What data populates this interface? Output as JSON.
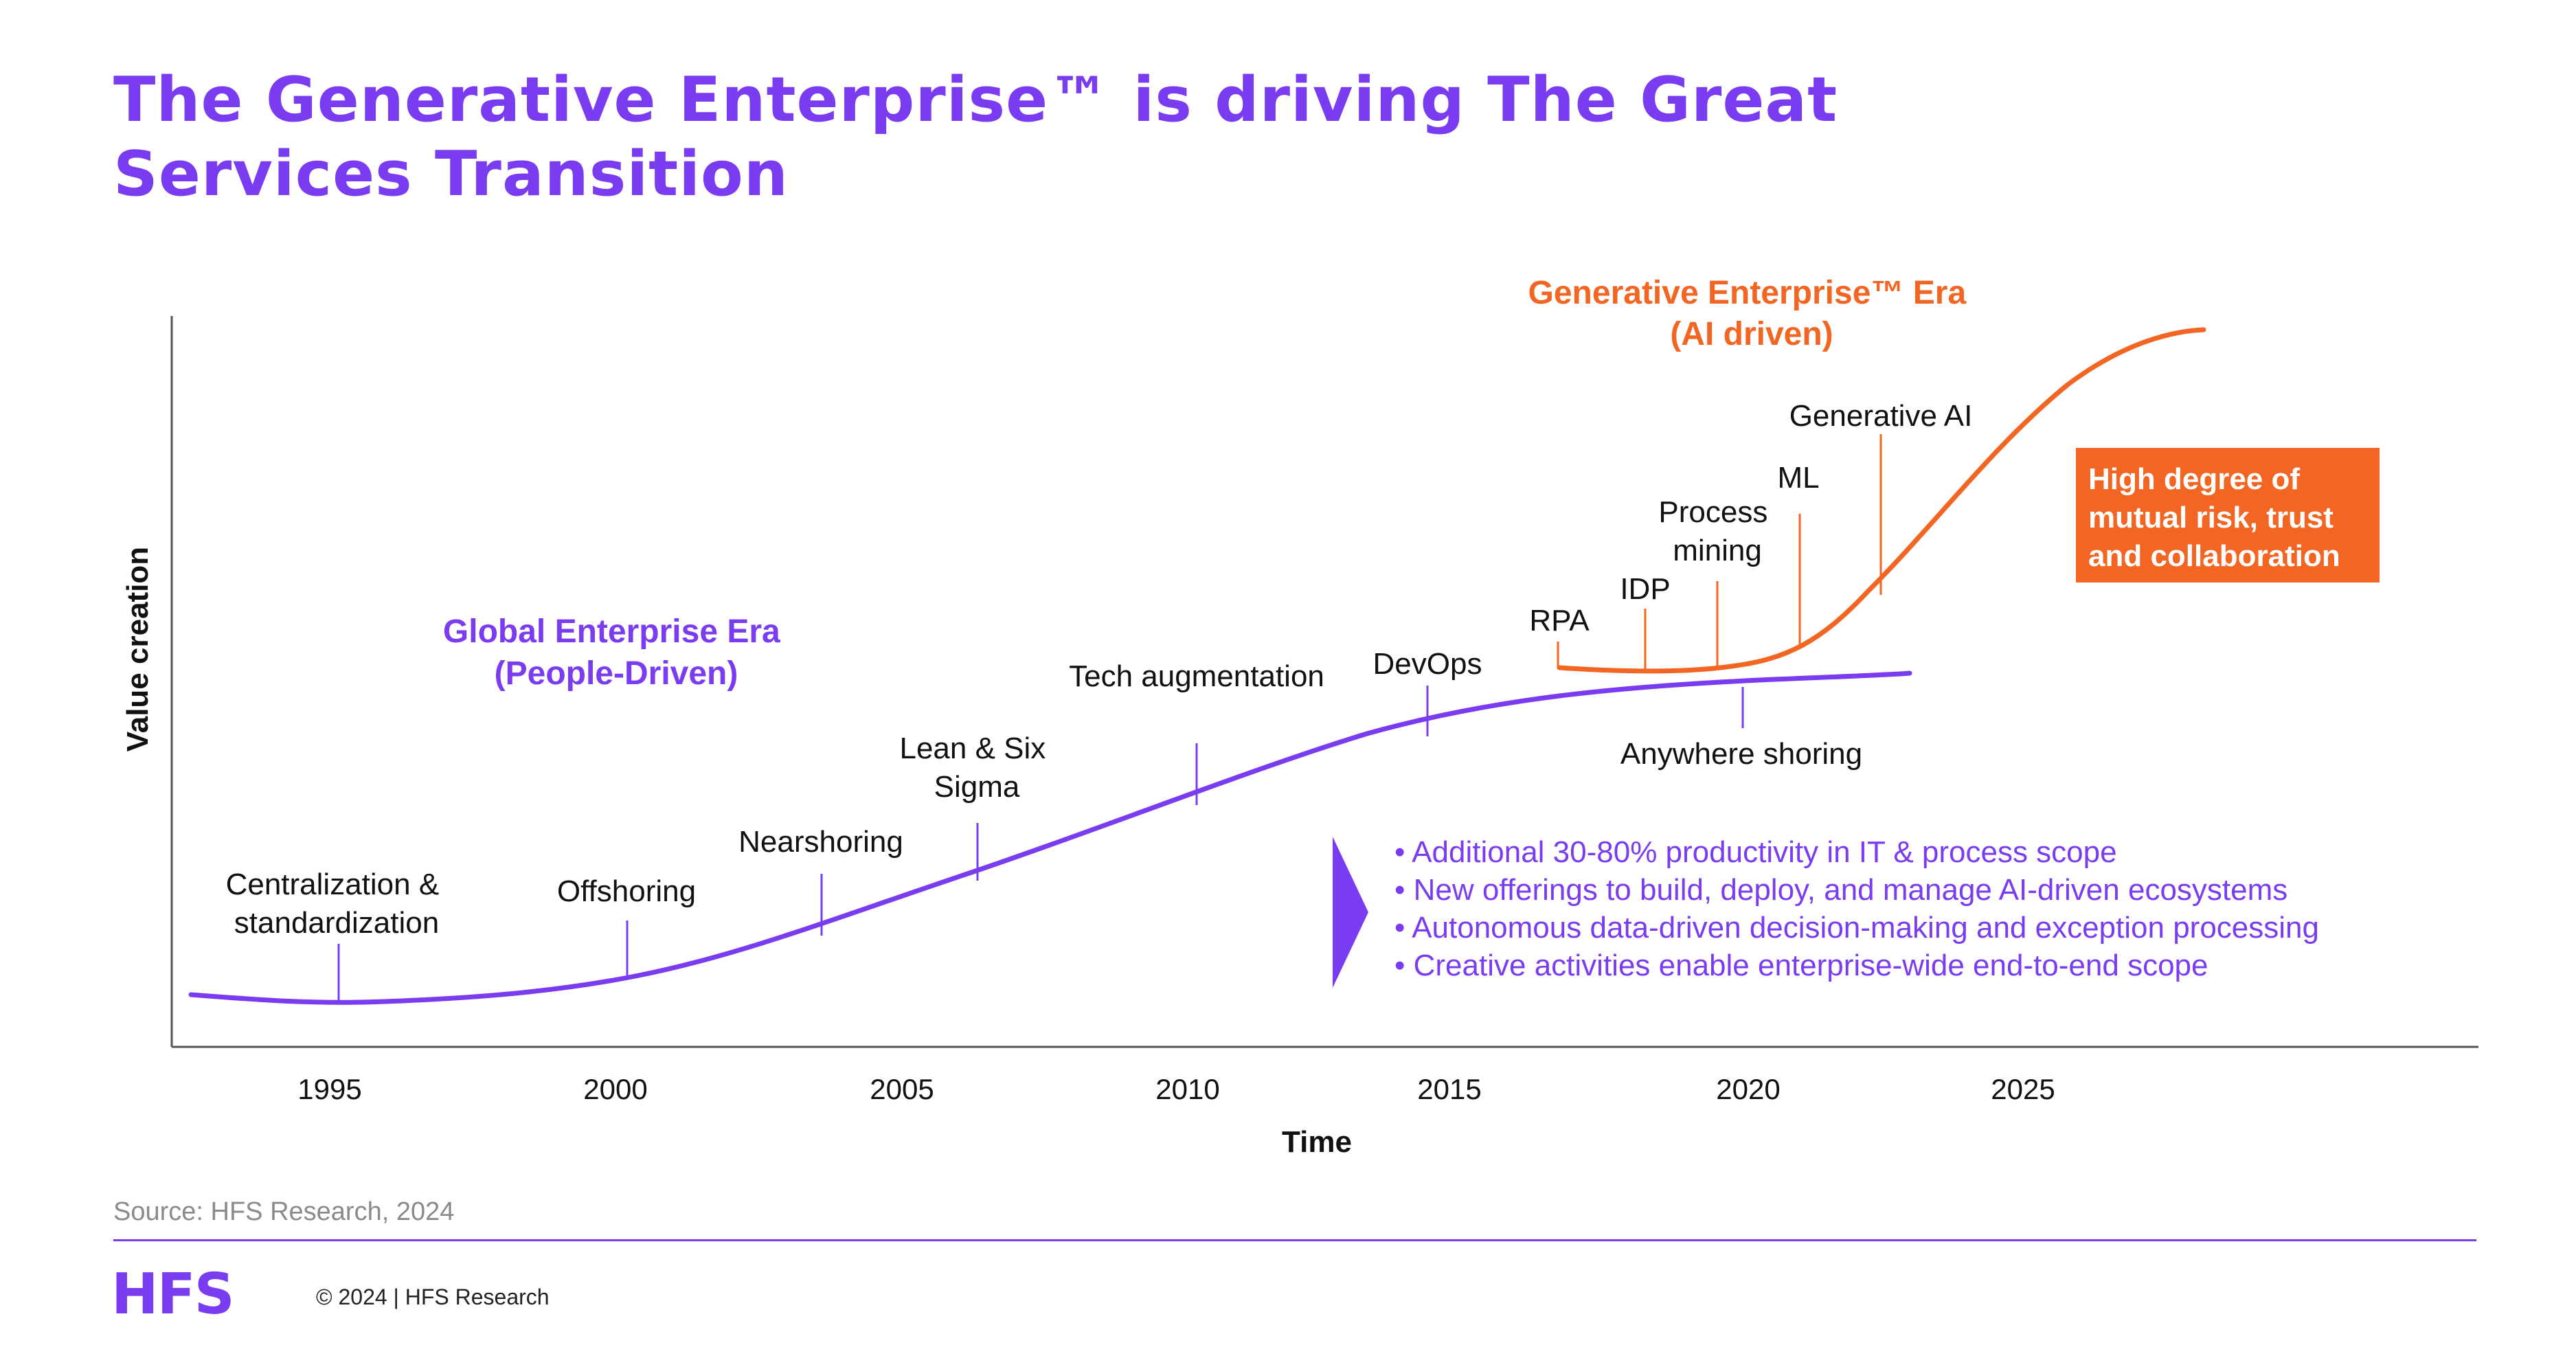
{
  "title_lines": [
    "The Generative Enterprise™ is driving The Great",
    "Services Transition"
  ],
  "axis": {
    "y_label": "Value creation",
    "x_label": "Time",
    "years": [
      "1995",
      "2000",
      "2005",
      "2010",
      "2015",
      "2020",
      "2025"
    ]
  },
  "global_era": {
    "title_lines": [
      "Global Enterprise Era",
      "(People-Driven)"
    ],
    "color": "#7a3cf0",
    "milestones": [
      {
        "lines": [
          "Centralization &",
          "standardization"
        ]
      },
      {
        "lines": [
          "Offshoring"
        ]
      },
      {
        "lines": [
          "Nearshoring"
        ]
      },
      {
        "lines": [
          "Lean & Six",
          "Sigma"
        ]
      },
      {
        "lines": [
          "Tech augmentation"
        ]
      },
      {
        "lines": [
          "DevOps"
        ]
      },
      {
        "lines": [
          "Anywhere shoring"
        ]
      }
    ]
  },
  "generative_era": {
    "title_lines": [
      "Generative Enterprise™ Era",
      "(AI driven)"
    ],
    "color": "#f26522",
    "milestones": [
      {
        "lines": [
          "RPA"
        ]
      },
      {
        "lines": [
          "IDP"
        ]
      },
      {
        "lines": [
          "Process",
          "mining"
        ]
      },
      {
        "lines": [
          "ML"
        ]
      },
      {
        "lines": [
          "Generative AI"
        ]
      }
    ]
  },
  "callout_lines": [
    "High degree of",
    "mutual risk, trust",
    "and collaboration"
  ],
  "bullets": [
    "•  Additional 30-80% productivity in IT & process scope",
    "•  New offerings to build, deploy, and manage AI-driven ecosystems",
    "•  Autonomous data-driven decision-making and exception processing",
    "•  Creative activities enable enterprise-wide end-to-end scope"
  ],
  "source": "Source: HFS Research, 2024",
  "logo": "HFS",
  "copyright": "© 2024 | HFS Research"
}
